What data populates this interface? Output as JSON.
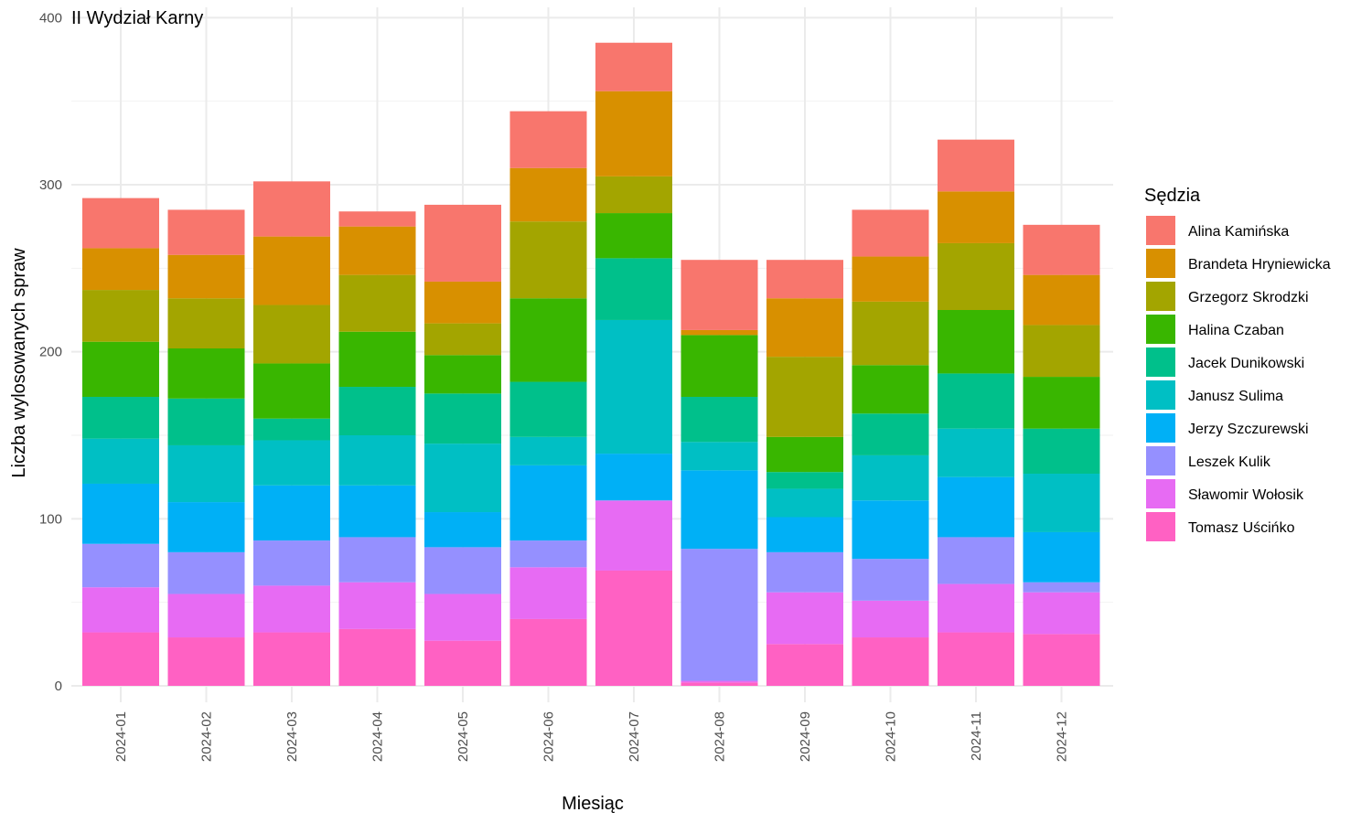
{
  "chart_data": {
    "type": "bar",
    "stacked": true,
    "title": "II Wydział Karny",
    "xlabel": "Miesiąc",
    "ylabel": "Liczba wylosowanych spraw",
    "ylim": [
      0,
      400
    ],
    "yticks": [
      0,
      100,
      200,
      300,
      400
    ],
    "grid": true,
    "legend_title": "Sędzia",
    "legend_position": "right",
    "categories": [
      "2024-01",
      "2024-02",
      "2024-03",
      "2024-04",
      "2024-05",
      "2024-06",
      "2024-07",
      "2024-08",
      "2024-09",
      "2024-10",
      "2024-11",
      "2024-12"
    ],
    "series": [
      {
        "name": "Tomasz Uścińko",
        "color": "#FF61C3",
        "values": [
          32,
          29,
          32,
          34,
          27,
          40,
          69,
          2,
          25,
          29,
          32,
          31
        ]
      },
      {
        "name": "Sławomir Wołosik",
        "color": "#E76BF3",
        "values": [
          27,
          26,
          28,
          28,
          28,
          31,
          42,
          1,
          31,
          22,
          29,
          25
        ]
      },
      {
        "name": "Leszek Kulik",
        "color": "#9590FF",
        "values": [
          26,
          25,
          27,
          27,
          28,
          16,
          0,
          79,
          24,
          25,
          28,
          6
        ]
      },
      {
        "name": "Jerzy Szczurewski",
        "color": "#00B0F6",
        "values": [
          36,
          30,
          33,
          31,
          21,
          45,
          28,
          47,
          21,
          35,
          36,
          30
        ]
      },
      {
        "name": "Janusz Sulima",
        "color": "#00BFC4",
        "values": [
          27,
          34,
          27,
          30,
          41,
          17,
          80,
          17,
          17,
          27,
          29,
          35
        ]
      },
      {
        "name": "Jacek Dunikowski",
        "color": "#00C08B",
        "values": [
          25,
          28,
          13,
          29,
          30,
          33,
          37,
          27,
          10,
          25,
          33,
          27
        ]
      },
      {
        "name": "Halina Czaban",
        "color": "#39B600",
        "values": [
          33,
          30,
          33,
          33,
          23,
          50,
          27,
          37,
          21,
          29,
          38,
          31
        ]
      },
      {
        "name": "Grzegorz Skrodzki",
        "color": "#A3A500",
        "values": [
          31,
          30,
          35,
          34,
          19,
          46,
          22,
          0,
          48,
          38,
          40,
          31
        ]
      },
      {
        "name": "Brandeta Hryniewicka",
        "color": "#D89000",
        "values": [
          25,
          26,
          41,
          29,
          25,
          32,
          51,
          3,
          35,
          27,
          31,
          30
        ]
      },
      {
        "name": "Alina Kamińska",
        "color": "#F8766D",
        "values": [
          30,
          27,
          33,
          9,
          46,
          34,
          29,
          42,
          23,
          28,
          31,
          30
        ]
      }
    ],
    "legend_order": [
      "Alina Kamińska",
      "Brandeta Hryniewicka",
      "Grzegorz Skrodzki",
      "Halina Czaban",
      "Jacek Dunikowski",
      "Janusz Sulima",
      "Jerzy Szczurewski",
      "Leszek Kulik",
      "Sławomir Wołosik",
      "Tomasz Uścińko"
    ]
  }
}
